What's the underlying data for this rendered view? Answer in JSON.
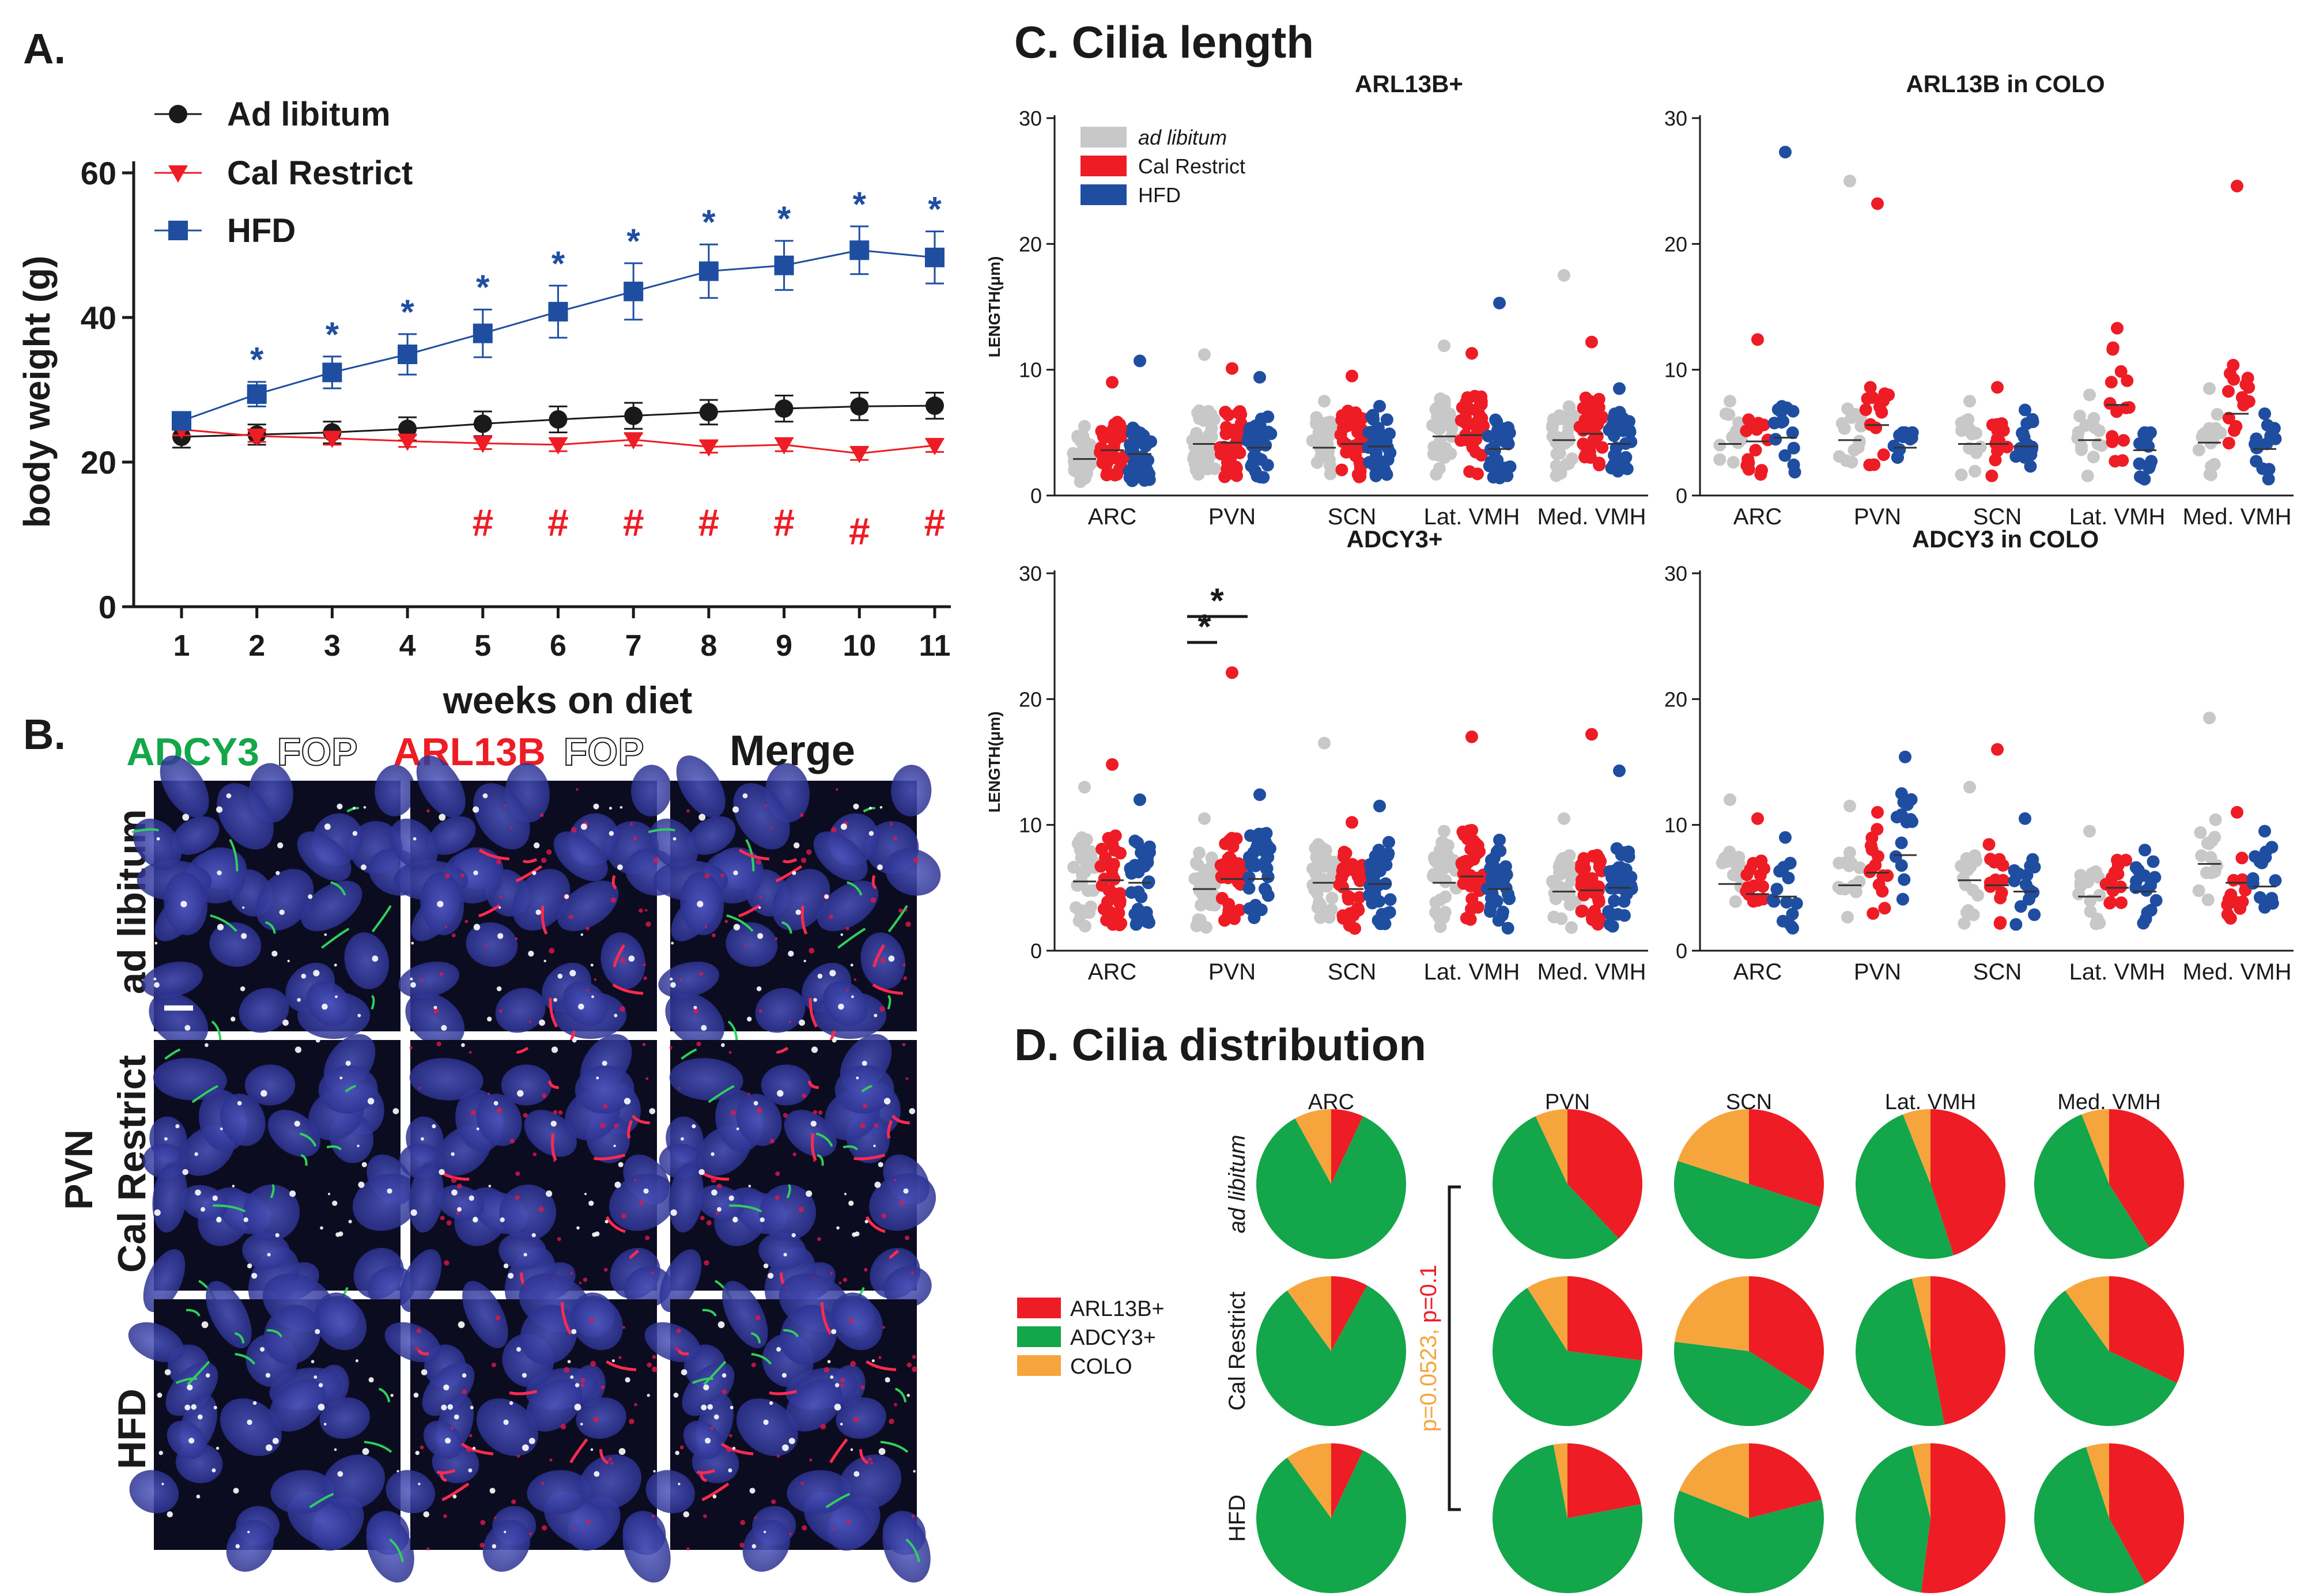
{
  "colors": {
    "adlib_dot": "#c8c8c8",
    "calres": "#ee1c25",
    "hfd": "#1f4ea1",
    "black": "#1a1a1a",
    "pie_arl": "#ee1c25",
    "pie_adcy": "#14a64a",
    "pie_colo": "#f6a53d",
    "nucleus": "#3a43a3"
  },
  "panelA": {
    "label": "A.",
    "chart_data": {
      "type": "line",
      "title": "",
      "xlabel": "weeks on diet",
      "ylabel": "body weight (g)",
      "x": [
        1,
        2,
        3,
        4,
        5,
        6,
        7,
        8,
        9,
        10,
        11
      ],
      "xticks": [
        "1",
        "2",
        "3",
        "4",
        "5",
        "6",
        "7",
        "8",
        "9",
        "10",
        "11"
      ],
      "yticks": [
        "0",
        "20",
        "40",
        "60"
      ],
      "ylim": [
        0,
        60
      ],
      "series": [
        {
          "name": "Ad libitum",
          "color": "#1a1a1a",
          "marker": "circle",
          "values": [
            23.5,
            23.8,
            24.1,
            24.6,
            25.3,
            25.9,
            26.4,
            26.9,
            27.4,
            27.7,
            27.8
          ],
          "err": [
            1.5,
            1.4,
            1.5,
            1.6,
            1.7,
            1.8,
            1.8,
            1.7,
            1.8,
            1.9,
            1.8
          ]
        },
        {
          "name": "Cal Restrict",
          "color": "#ee1c25",
          "marker": "triangle-down",
          "values": [
            24.5,
            23.6,
            23.3,
            22.9,
            22.6,
            22.4,
            23.1,
            22.1,
            22.4,
            21.2,
            22.3
          ],
          "err": [
            0.8,
            0.8,
            0.9,
            0.8,
            0.8,
            0.9,
            0.8,
            0.8,
            0.9,
            0.9,
            0.9
          ]
        },
        {
          "name": "HFD",
          "color": "#1f4ea1",
          "marker": "square",
          "values": [
            25.7,
            29.4,
            32.4,
            34.9,
            37.8,
            40.8,
            43.6,
            46.4,
            47.2,
            49.3,
            48.3
          ],
          "err": [
            1.2,
            1.7,
            2.2,
            2.8,
            3.3,
            3.6,
            3.9,
            3.7,
            3.4,
            3.3,
            3.6
          ]
        }
      ],
      "annotations_star": {
        "symbol": "*",
        "weeks": [
          2,
          3,
          4,
          5,
          6,
          7,
          8,
          9,
          10,
          11
        ]
      },
      "annotations_hash": {
        "symbol": "#",
        "weeks": [
          5,
          6,
          7,
          8,
          9,
          10,
          11
        ]
      }
    }
  },
  "panelB": {
    "label": "B.",
    "col1_green": "ADCY3",
    "col1_white": "FOP",
    "col2_red": "ARL13B",
    "col2_white": "FOP",
    "col3": "Merge",
    "row1": "ad libitum",
    "row2": "Cal Restrict",
    "row3": "HFD",
    "region": "PVN"
  },
  "panelC": {
    "label": "C. Cilia length",
    "ylabel": "LENGTH(μm)",
    "legend": [
      "ad libitum",
      "Cal Restrict",
      "HFD"
    ],
    "sig1": "*",
    "sig2": "*",
    "chart_data": [
      {
        "type": "scatter",
        "title": "ARL13B+",
        "categories": [
          "ARC",
          "PVN",
          "SCN",
          "Lat. VMH",
          "Med. VMH"
        ],
        "ylim": [
          0,
          30
        ],
        "yticks": [
          "0",
          "10",
          "20",
          "30"
        ],
        "groups": [
          {
            "name": "ad libitum",
            "medians": [
              2.9,
              4.1,
              3.8,
              4.7,
              4.4
            ],
            "max": [
              5.5,
              11.2,
              7.5,
              11.9,
              17.5
            ]
          },
          {
            "name": "Cal Restrict",
            "medians": [
              3.6,
              4.2,
              4.1,
              4.8,
              4.9
            ],
            "max": [
              9.0,
              10.1,
              9.5,
              11.3,
              12.2
            ]
          },
          {
            "name": "HFD",
            "medians": [
              3.3,
              3.8,
              3.9,
              3.7,
              4.1
            ],
            "max": [
              10.7,
              9.4,
              7.1,
              15.3,
              8.5
            ]
          }
        ]
      },
      {
        "type": "scatter",
        "title": "ARL13B in COLO",
        "categories": [
          "ARC",
          "PVN",
          "SCN",
          "Lat. VMH",
          "Med. VMH"
        ],
        "ylim": [
          0,
          30
        ],
        "yticks": [
          "0",
          "10",
          "20",
          "30"
        ],
        "groups": [
          {
            "name": "ad libitum",
            "medians": [
              4.1,
              4.4,
              4.1,
              4.4,
              4.2
            ],
            "max": [
              7.5,
              25.0,
              7.5,
              8.0,
              8.5
            ]
          },
          {
            "name": "Cal Restrict",
            "medians": [
              4.3,
              5.6,
              4.1,
              7.2,
              6.5
            ],
            "max": [
              12.4,
              23.2,
              8.6,
              13.3,
              24.6
            ]
          },
          {
            "name": "HFD",
            "medians": [
              4.6,
              3.8,
              3.9,
              3.6,
              3.7
            ],
            "max": [
              27.3,
              5.0,
              6.8,
              5.0,
              6.5
            ]
          }
        ]
      },
      {
        "type": "scatter",
        "title": "ADCY3+",
        "categories": [
          "ARC",
          "PVN",
          "SCN",
          "Lat. VMH",
          "Med. VMH"
        ],
        "ylim": [
          0,
          30
        ],
        "yticks": [
          "0",
          "10",
          "20",
          "30"
        ],
        "groups": [
          {
            "name": "ad libitum",
            "medians": [
              5.5,
              4.9,
              5.4,
              5.4,
              4.7
            ],
            "max": [
              13.0,
              10.5,
              16.5,
              9.5,
              10.5
            ]
          },
          {
            "name": "Cal Restrict",
            "medians": [
              5.6,
              5.7,
              4.9,
              5.9,
              4.8
            ],
            "max": [
              14.8,
              22.1,
              10.2,
              17.0,
              17.2
            ]
          },
          {
            "name": "HFD",
            "medians": [
              5.4,
              5.7,
              5.3,
              4.9,
              5.0
            ],
            "max": [
              12.0,
              12.4,
              11.5,
              8.8,
              14.3
            ]
          }
        ]
      },
      {
        "type": "scatter",
        "title": "ADCY3 in COLO",
        "categories": [
          "ARC",
          "PVN",
          "SCN",
          "Lat. VMH",
          "Med. VMH"
        ],
        "ylim": [
          0,
          30
        ],
        "yticks": [
          "0",
          "10",
          "20",
          "30"
        ],
        "groups": [
          {
            "name": "ad libitum",
            "medians": [
              5.3,
              5.2,
              5.6,
              4.3,
              6.9
            ],
            "max": [
              12.0,
              11.5,
              13.0,
              9.5,
              18.5
            ]
          },
          {
            "name": "Cal Restrict",
            "medians": [
              4.5,
              6.2,
              5.2,
              5.0,
              5.4
            ],
            "max": [
              10.5,
              11.0,
              16.0,
              7.2,
              11.0
            ]
          },
          {
            "name": "HFD",
            "medians": [
              4.3,
              7.6,
              4.7,
              4.7,
              5.1
            ],
            "max": [
              9.0,
              15.4,
              10.5,
              8.0,
              9.5
            ]
          }
        ]
      }
    ]
  },
  "panelD": {
    "label": "D. Cilia distribution",
    "legend": [
      "ARL13B+",
      "ADCY3+",
      "COLO"
    ],
    "row_labels": [
      "ad libitum",
      "Cal Restrict",
      "HFD"
    ],
    "pval1": "p=0.0523,",
    "pval2": "p=0.1",
    "chart_data": {
      "type": "pie",
      "regions": [
        "ARC",
        "PVN",
        "SCN",
        "Lat. VMH",
        "Med. VMH"
      ],
      "rows": [
        "ad libitum",
        "Cal Restrict",
        "HFD"
      ],
      "note": "fractions [ARL13B+, ADCY3+, COLO]",
      "values": [
        [
          [
            0.07,
            0.85,
            0.08
          ],
          [
            0.38,
            0.55,
            0.07
          ],
          [
            0.3,
            0.5,
            0.2
          ],
          [
            0.45,
            0.49,
            0.06
          ],
          [
            0.41,
            0.53,
            0.06
          ]
        ],
        [
          [
            0.08,
            0.82,
            0.1
          ],
          [
            0.27,
            0.64,
            0.09
          ],
          [
            0.34,
            0.43,
            0.23
          ],
          [
            0.47,
            0.49,
            0.04
          ],
          [
            0.32,
            0.58,
            0.1
          ]
        ],
        [
          [
            0.07,
            0.83,
            0.1
          ],
          [
            0.22,
            0.75,
            0.03
          ],
          [
            0.21,
            0.6,
            0.19
          ],
          [
            0.52,
            0.44,
            0.04
          ],
          [
            0.42,
            0.53,
            0.05
          ]
        ]
      ]
    }
  }
}
